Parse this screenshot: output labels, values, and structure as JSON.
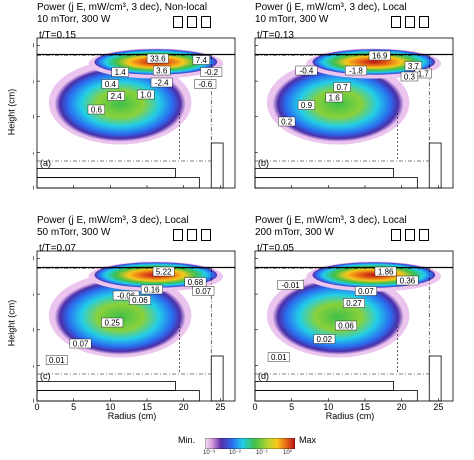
{
  "panels": [
    {
      "id": "a",
      "header_lines": [
        "Power (j E, mW/cm³, 3 dec), Non-local",
        "10 mTorr, 300 W"
      ],
      "time": "t/T=0.15",
      "letter": "(a)",
      "labels": [
        "33.6",
        "7.4",
        "1.4",
        "3.6",
        "-0.2",
        "0.4",
        "-2.4",
        "-0.6",
        "2.4",
        "1.0",
        "0.6"
      ]
    },
    {
      "id": "b",
      "header_lines": [
        "Power (j E, mW/cm³, 3 dec), Local",
        "10 mTorr, 300 W"
      ],
      "time": "t/T=0.13",
      "letter": "(b)",
      "labels": [
        "16.9",
        "3.7",
        "1.7",
        "-0.4",
        "-1.8",
        "0.3",
        "0.7",
        "1.6",
        "0.9",
        "0.2"
      ]
    },
    {
      "id": "c",
      "header_lines": [
        "Power (j E, mW/cm³, 3 dec), Local",
        "50 mTorr, 300 W"
      ],
      "time": "t/T=0.07",
      "letter": "(c)",
      "labels": [
        "5.22",
        "0.68",
        "0.16",
        "-0.06",
        "0.06",
        "0.07",
        "0.25",
        "0.07",
        "0.01"
      ]
    },
    {
      "id": "d",
      "header_lines": [
        "Power (j E, mW/cm³, 3 dec), Local",
        "200 mTorr, 300 W"
      ],
      "time": "t/T=0.05",
      "letter": "(d)",
      "labels": [
        "1.86",
        "0.36",
        "-0.01",
        "0.07",
        "0.27",
        "0.06",
        "0.02",
        "0.01"
      ]
    }
  ],
  "axes": {
    "ylabel": "Height (cm)",
    "xlabel": "Radius (cm)",
    "y_ticks": [
      "0",
      "5",
      "10",
      "15",
      "20"
    ],
    "x_ticks": [
      "0",
      "5",
      "10",
      "15",
      "20",
      "25"
    ]
  },
  "colorbar": {
    "min_label": "Min.",
    "max_label": "Max",
    "ticks": [
      "10⁻³",
      "10⁻²",
      "10⁻¹",
      "10⁰"
    ]
  }
}
